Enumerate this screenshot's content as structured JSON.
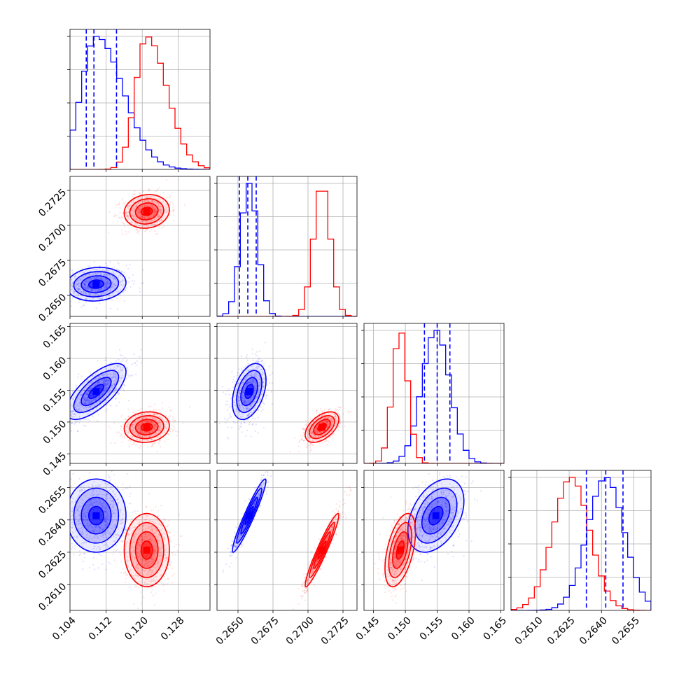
{
  "chart_data": {
    "type": "corner",
    "grid": true,
    "colors": {
      "series_a": "#0000ff",
      "series_b": "#ff0000"
    },
    "parameters": [
      {
        "range": [
          0.104,
          0.135
        ],
        "ticks": [
          "0.104",
          "0.112",
          "0.120",
          "0.128"
        ],
        "tick_values": [
          0.104,
          0.112,
          0.12,
          0.128
        ]
      },
      {
        "range": [
          0.2635,
          0.2735
        ],
        "ticks": [
          "0.2650",
          "0.2675",
          "0.2700",
          "0.2725"
        ],
        "tick_values": [
          0.265,
          0.2675,
          0.27,
          0.2725
        ]
      },
      {
        "range": [
          0.1435,
          0.1655
        ],
        "ticks": [
          "0.145",
          "0.150",
          "0.155",
          "0.160",
          "0.165"
        ],
        "tick_values": [
          0.145,
          0.15,
          0.155,
          0.16,
          0.165
        ]
      },
      {
        "range": [
          0.2598,
          0.2663
        ],
        "ticks": [
          "0.2610",
          "0.2625",
          "0.2640",
          "0.2655"
        ],
        "tick_values": [
          0.261,
          0.2625,
          0.264,
          0.2655
        ]
      }
    ],
    "series": [
      {
        "color": "#0000ff",
        "mean": [
          0.1098,
          0.2658,
          0.1548,
          0.2642
        ],
        "std": [
          0.0033,
          0.0006,
          0.0022,
          0.00085
        ],
        "quantiles_16_50_84": [
          [
            0.1076,
            0.1093,
            0.1143
          ],
          [
            0.2651,
            0.2657,
            0.2663
          ],
          [
            0.153,
            0.155,
            0.157
          ],
          [
            0.2633,
            0.2642,
            0.265
          ]
        ],
        "correlations": {
          "0-1": 0.1,
          "0-2": 0.7,
          "0-3": 0.0,
          "1-2": 0.4,
          "1-3": 0.95,
          "2-3": 0.4
        }
      },
      {
        "color": "#ff0000",
        "mean": [
          0.121,
          0.271,
          0.1492,
          0.2626
        ],
        "std": [
          0.0025,
          0.0006,
          0.0012,
          0.00085
        ],
        "correlations": {
          "0-1": 0.1,
          "0-2": 0.1,
          "0-3": 0.0,
          "1-2": 0.5,
          "1-3": 0.95,
          "2-3": 0.5
        }
      }
    ]
  }
}
